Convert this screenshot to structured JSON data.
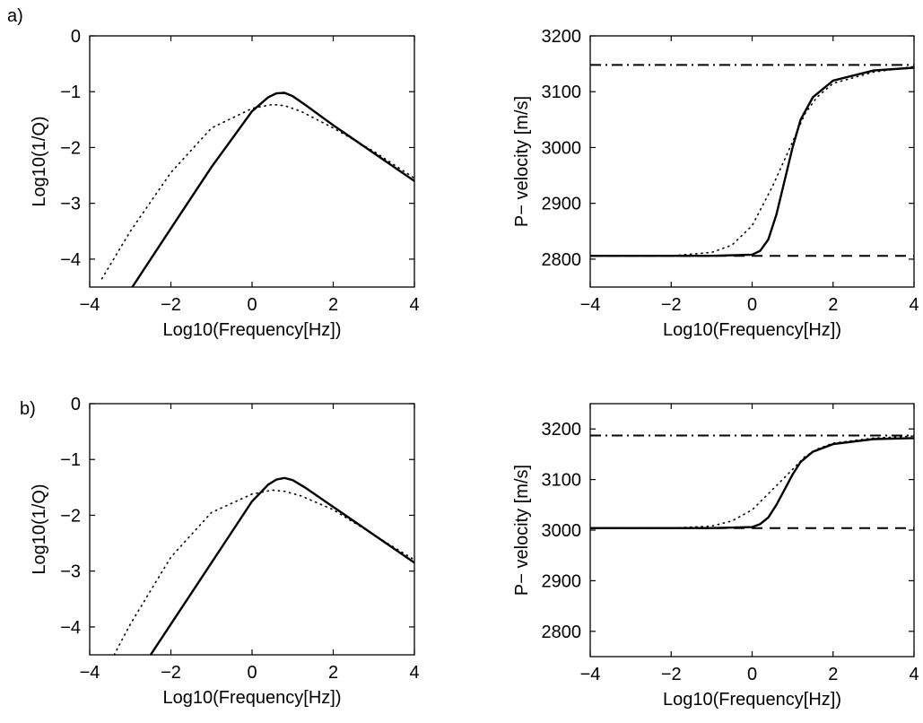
{
  "figure": {
    "panel_labels": [
      "a)",
      "b)"
    ]
  },
  "chart_data": [
    {
      "id": "a-left",
      "type": "line",
      "xlabel": "Log10(Frequency[Hz])",
      "ylabel": "Log10(1/Q)",
      "xlim": [
        -4,
        4
      ],
      "ylim": [
        -4.5,
        0
      ],
      "xticks": [
        -4,
        -2,
        0,
        2,
        4
      ],
      "yticks": [
        0,
        -1,
        -2,
        -3,
        -4
      ],
      "grid": false,
      "series": [
        {
          "style": "solid",
          "x": [
            -2.95,
            -2,
            -1,
            0,
            0.4,
            0.6,
            0.8,
            1.0,
            1.3,
            2,
            3,
            4
          ],
          "y": [
            -4.5,
            -3.45,
            -2.35,
            -1.35,
            -1.1,
            -1.03,
            -1.02,
            -1.08,
            -1.23,
            -1.6,
            -2.1,
            -2.6
          ]
        },
        {
          "style": "dotted",
          "x": [
            -3.7,
            -3,
            -2,
            -1,
            0,
            0.5,
            0.8,
            1.2,
            2,
            3,
            4
          ],
          "y": [
            -4.35,
            -3.5,
            -2.45,
            -1.65,
            -1.3,
            -1.23,
            -1.25,
            -1.35,
            -1.65,
            -2.07,
            -2.55
          ]
        }
      ]
    },
    {
      "id": "a-right",
      "type": "line",
      "xlabel": "Log10(Frequency[Hz])",
      "ylabel": "P− velocity [m/s]",
      "xlim": [
        -4,
        4
      ],
      "ylim": [
        2750,
        3200
      ],
      "xticks": [
        -4,
        -2,
        0,
        2,
        4
      ],
      "yticks": [
        2800,
        2900,
        3000,
        3100,
        3200
      ],
      "grid": false,
      "series": [
        {
          "style": "solid",
          "x": [
            -4,
            -1,
            0,
            0.2,
            0.4,
            0.6,
            0.8,
            1.0,
            1.2,
            1.5,
            2,
            3,
            4
          ],
          "y": [
            2806,
            2806,
            2808,
            2815,
            2835,
            2880,
            2940,
            3000,
            3050,
            3090,
            3120,
            3138,
            3143
          ]
        },
        {
          "style": "dotted",
          "x": [
            -4,
            -2,
            -1,
            -0.5,
            0,
            0.5,
            1.0,
            1.3,
            1.6,
            2,
            3,
            4
          ],
          "y": [
            2806,
            2806,
            2812,
            2825,
            2860,
            2930,
            3010,
            3060,
            3090,
            3115,
            3135,
            3145
          ]
        },
        {
          "style": "dashdot",
          "x": [
            -4,
            4
          ],
          "y": [
            3148,
            3148
          ]
        },
        {
          "style": "dashed",
          "x": [
            -4,
            4
          ],
          "y": [
            2806,
            2806
          ]
        }
      ]
    },
    {
      "id": "b-left",
      "type": "line",
      "xlabel": "Log10(Frequency[Hz])",
      "ylabel": "Log10(1/Q)",
      "xlim": [
        -4,
        4
      ],
      "ylim": [
        -4.5,
        0
      ],
      "xticks": [
        -4,
        -2,
        0,
        2,
        4
      ],
      "yticks": [
        0,
        -1,
        -2,
        -3,
        -4
      ],
      "grid": false,
      "series": [
        {
          "style": "solid",
          "x": [
            -2.5,
            -2,
            -1,
            0,
            0.4,
            0.6,
            0.8,
            1.0,
            1.3,
            2,
            3,
            4
          ],
          "y": [
            -4.5,
            -3.95,
            -2.85,
            -1.75,
            -1.45,
            -1.36,
            -1.33,
            -1.37,
            -1.5,
            -1.85,
            -2.35,
            -2.85
          ]
        },
        {
          "style": "dotted",
          "x": [
            -3.4,
            -3,
            -2,
            -1,
            0,
            0.5,
            0.8,
            1.2,
            2,
            3,
            4
          ],
          "y": [
            -4.5,
            -3.95,
            -2.75,
            -1.95,
            -1.62,
            -1.55,
            -1.57,
            -1.65,
            -1.9,
            -2.35,
            -2.8
          ]
        }
      ]
    },
    {
      "id": "b-right",
      "type": "line",
      "xlabel": "Log10(Frequency[Hz])",
      "ylabel": "P− velocity [m/s]",
      "xlim": [
        -4,
        4
      ],
      "ylim": [
        2750,
        3250
      ],
      "xticks": [
        -4,
        -2,
        0,
        2,
        4
      ],
      "yticks": [
        2800,
        2900,
        3000,
        3100,
        3200
      ],
      "grid": false,
      "series": [
        {
          "style": "solid",
          "x": [
            -4,
            -1,
            0,
            0.2,
            0.4,
            0.6,
            0.8,
            1.0,
            1.2,
            1.5,
            2,
            3,
            4
          ],
          "y": [
            3004,
            3004,
            3006,
            3012,
            3025,
            3050,
            3080,
            3110,
            3135,
            3155,
            3170,
            3180,
            3182
          ]
        },
        {
          "style": "dotted",
          "x": [
            -4,
            -2,
            -1,
            -0.5,
            0,
            0.5,
            1.0,
            1.3,
            1.6,
            2,
            3,
            4
          ],
          "y": [
            3004,
            3004,
            3008,
            3018,
            3040,
            3080,
            3120,
            3145,
            3160,
            3172,
            3182,
            3186
          ]
        },
        {
          "style": "dashdot",
          "x": [
            -4,
            4
          ],
          "y": [
            3187,
            3187
          ]
        },
        {
          "style": "dashed",
          "x": [
            -4,
            4
          ],
          "y": [
            3004,
            3004
          ]
        }
      ]
    }
  ]
}
